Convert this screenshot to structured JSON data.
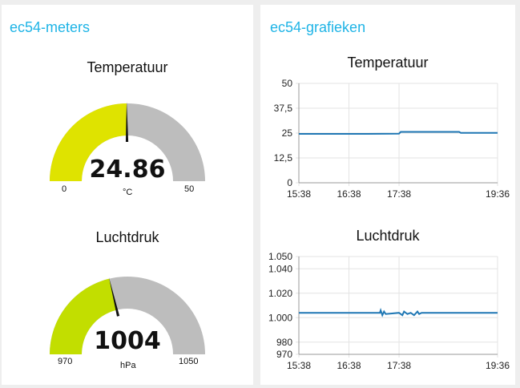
{
  "colors": {
    "accent": "#1fb4e6",
    "gauge_bg": "#bdbdbd",
    "temp_fill": "#dfe300",
    "pressure_fill": "#c2de00",
    "line": "#1f77b4",
    "grid": "#e3e3e3"
  },
  "meters": {
    "title": "ec54-meters",
    "temperature": {
      "title": "Temperatuur",
      "value": "24.86",
      "unit": "°C",
      "min": "0",
      "max": "50",
      "fraction": 0.497
    },
    "pressure": {
      "title": "Luchtdruk",
      "value": "1004",
      "unit": "hPa",
      "min": "970",
      "max": "1050",
      "fraction": 0.425
    }
  },
  "charts": {
    "title": "ec54-grafieken"
  },
  "chart_data": [
    {
      "type": "line",
      "title": "Temperatuur",
      "x_ticks": [
        "15:38",
        "16:38",
        "17:38",
        "19:36"
      ],
      "y_ticks": [
        "0",
        "12,5",
        "25",
        "37,5",
        "50"
      ],
      "ylim": [
        0,
        50
      ],
      "grid": true,
      "series": [
        {
          "x": [
            "15:38",
            "16:00",
            "16:38",
            "17:00",
            "17:38",
            "17:40",
            "18:00",
            "18:30",
            "18:50",
            "18:52",
            "19:10",
            "19:36"
          ],
          "values": [
            24.6,
            24.6,
            24.6,
            24.6,
            24.7,
            25.6,
            25.6,
            25.6,
            25.6,
            25.1,
            25.1,
            25.1
          ]
        }
      ]
    },
    {
      "type": "line",
      "title": "Luchtdruk",
      "x_ticks": [
        "15:38",
        "16:38",
        "17:38",
        "19:36"
      ],
      "y_ticks": [
        "970",
        "980",
        "1.000",
        "1.020",
        "1.040",
        "1.050"
      ],
      "ylim": [
        970,
        1050
      ],
      "grid": true,
      "series": [
        {
          "x": [
            "15:38",
            "16:38",
            "17:15",
            "17:16",
            "17:18",
            "17:20",
            "17:22",
            "17:38",
            "17:42",
            "17:44",
            "17:48",
            "17:52",
            "17:56",
            "18:00",
            "18:02",
            "18:05",
            "19:36"
          ],
          "values": [
            1004,
            1004,
            1004,
            1006,
            1002,
            1005,
            1003,
            1004,
            1002,
            1005,
            1003,
            1004,
            1002,
            1005,
            1003,
            1004,
            1004
          ]
        }
      ]
    }
  ]
}
